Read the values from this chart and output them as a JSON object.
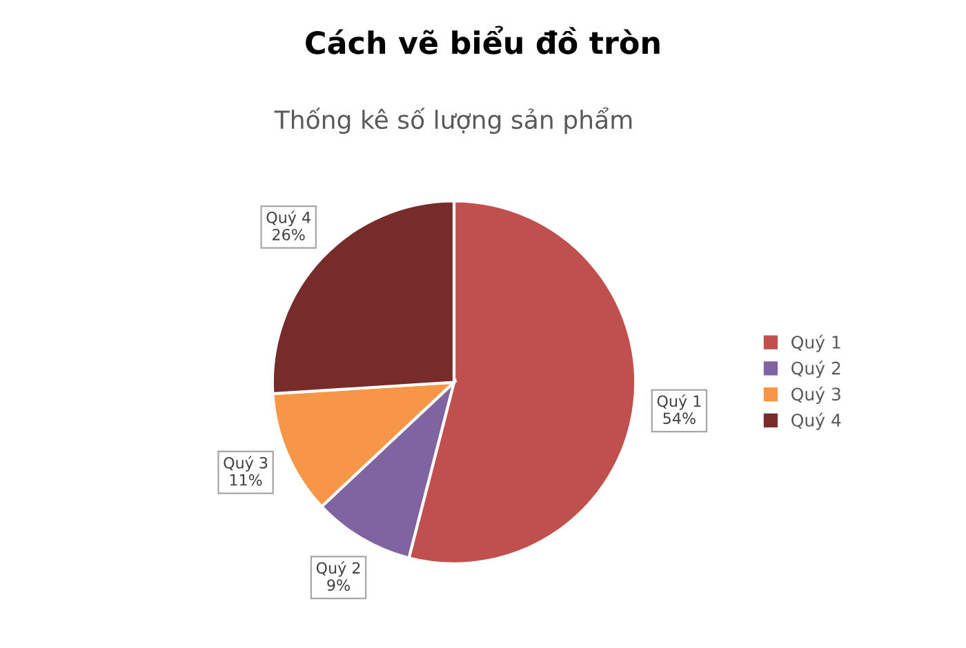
{
  "chart_data": {
    "type": "pie",
    "title": "Thống kê số lượng sản phẩm",
    "annotations": [
      "Cách vẽ biểu đồ tròn"
    ],
    "categories": [
      "Quý 1",
      "Quý 2",
      "Quý 3",
      "Quý 4"
    ],
    "values": [
      54,
      9,
      11,
      26
    ],
    "colors": [
      "#c0504d",
      "#8064a2",
      "#f79646",
      "#772c2a"
    ],
    "value_labels": [
      "54%",
      "9%",
      "11%",
      "26%"
    ],
    "legend": "right"
  }
}
